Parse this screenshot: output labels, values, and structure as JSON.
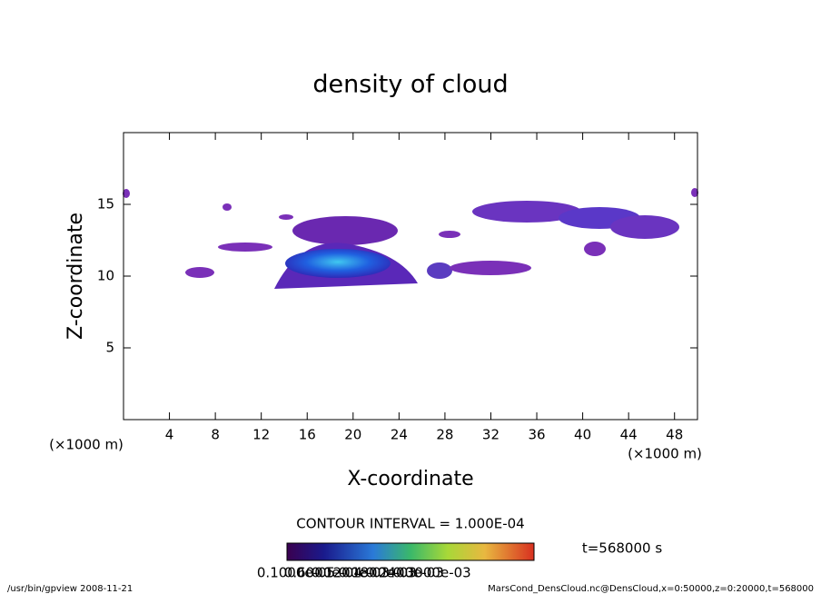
{
  "chart_data": {
    "type": "contour",
    "title": "density of cloud",
    "x_label": "X-coordinate",
    "y_label": "Z-coordinate",
    "x_unit": "(×1000 m)",
    "y_unit": "(×1000 m)",
    "xlim": [
      0,
      50
    ],
    "xticks": [
      4,
      8,
      12,
      16,
      20,
      24,
      28,
      32,
      36,
      40,
      44,
      48
    ],
    "ylim": [
      0,
      20
    ],
    "yticks": [
      5,
      10,
      15
    ],
    "contour_interval": "CONTOUR INTERVAL = 1.000E-04",
    "time": "t=568000 s",
    "colorbar_labels": [
      "0.1000e-05",
      "0.6000e-04",
      "0.1200e-03",
      "0.1800e-03",
      "0.2400e-03",
      "0.3000e-03"
    ],
    "footer_left": "/usr/bin/gpview  2008-11-21",
    "footer_right": "MarsCond_DensCloud.nc@DensCloud,x=0:50000,z=0:20000,t=568000"
  }
}
